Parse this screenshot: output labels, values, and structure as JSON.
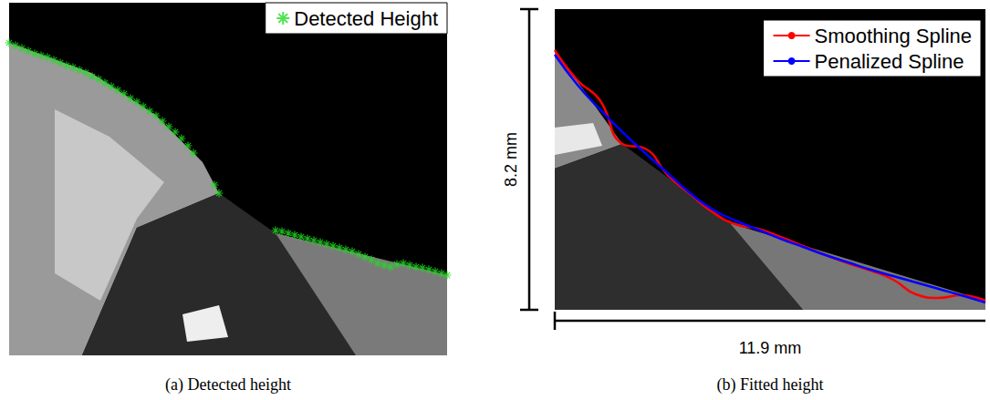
{
  "chart_data": [
    {
      "type": "scatter",
      "caption": "(a) Detected height",
      "legend": "top-right",
      "tick_labels": false,
      "xlim": [
        0,
        480
      ],
      "ylim": [
        0,
        387
      ],
      "series": [
        {
          "name": "Detected Height",
          "color": "#22dd22",
          "marker": "asterisk",
          "x": [
            0,
            7,
            14,
            21,
            28,
            35,
            42,
            49,
            56,
            63,
            70,
            77,
            84,
            91,
            98,
            105,
            112,
            119,
            126,
            133,
            140,
            147,
            154,
            161,
            168,
            175,
            182,
            189,
            196,
            202,
            225,
            230,
            292,
            299,
            306,
            313,
            320,
            327,
            334,
            341,
            348,
            355,
            362,
            369,
            376,
            383,
            390,
            397,
            404,
            411,
            418,
            425,
            432,
            439,
            446,
            453,
            460,
            467,
            474,
            480
          ],
          "values": [
            44,
            47,
            50,
            53,
            56,
            58,
            60,
            63,
            66,
            69,
            71,
            74,
            77,
            81,
            84,
            88,
            92,
            96,
            100,
            105,
            109,
            114,
            119,
            124,
            130,
            136,
            142,
            149,
            157,
            165,
            200,
            209,
            250,
            251,
            253,
            255,
            257,
            259,
            261,
            263,
            265,
            267,
            269,
            271,
            273,
            276,
            279,
            282,
            286,
            288,
            290,
            287,
            286,
            288,
            290,
            291,
            293,
            295,
            297,
            299
          ]
        }
      ]
    },
    {
      "type": "line",
      "caption": "(b) Fitted height",
      "xlabel": "11.9 mm",
      "ylabel": "8.2 mm",
      "legend": "top-right",
      "tick_labels": false,
      "xlim": [
        0,
        477
      ],
      "ylim": [
        0,
        330
      ],
      "x": [
        0,
        25,
        50,
        75,
        100,
        125,
        150,
        175,
        200,
        225,
        250,
        275,
        300,
        325,
        350,
        375,
        400,
        425,
        450,
        477
      ],
      "series": [
        {
          "name": "Smoothing Spline",
          "color": "#ff0000",
          "line_style": "solid",
          "values": [
            45,
            78,
            100,
            148,
            153,
            182,
            203,
            223,
            236,
            241,
            250,
            260,
            270,
            279,
            287,
            297,
            313,
            317,
            314,
            320
          ]
        },
        {
          "name": "Penalized Spline",
          "color": "#0000ff",
          "line_style": "solid",
          "values": [
            50,
            83,
            110,
            135,
            158,
            180,
            202,
            220,
            232,
            242,
            252,
            261,
            270,
            278,
            286,
            293,
            300,
            307,
            314,
            322
          ]
        }
      ]
    }
  ]
}
